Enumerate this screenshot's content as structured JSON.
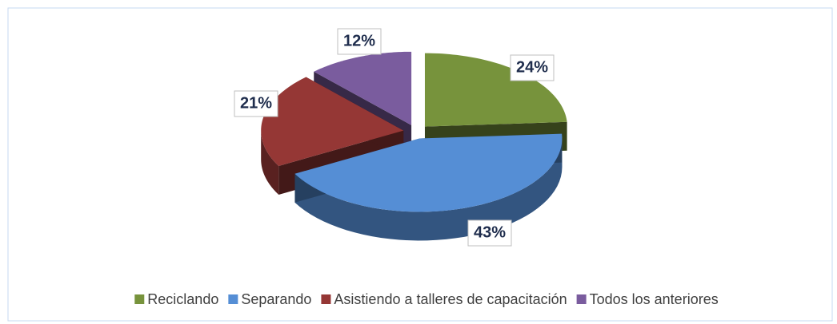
{
  "chart_data": {
    "type": "pie",
    "categories": [
      "Reciclando",
      "Separando",
      "Asistiendo a talleres de capacitación",
      "Todos los anteriores"
    ],
    "values": [
      24,
      43,
      21,
      12
    ],
    "value_labels": [
      "24%",
      "43%",
      "21%",
      "12%"
    ],
    "colors": [
      "#77933c",
      "#558ed5",
      "#953735",
      "#7a5c9e"
    ],
    "legend": "bottom"
  }
}
